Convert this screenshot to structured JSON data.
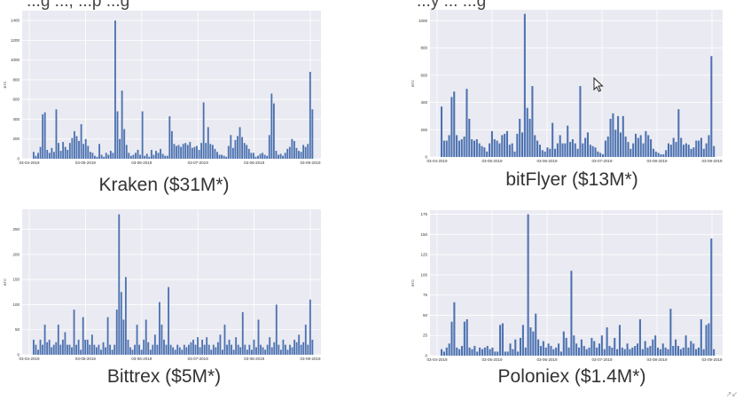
{
  "header": {
    "fragment_left": "...g   ...,   ...p   ...g",
    "fragment_right": "...y   ...   ...g"
  },
  "colors": {
    "bar": "#4c72b0",
    "plot_bg": "#eaeaf2",
    "grid": "#ffffff"
  },
  "chart_data": [
    {
      "type": "bar",
      "caption": "Kraken ($31M*)",
      "ylabel": "BTC",
      "ylim": [
        0,
        1500
      ],
      "yticks": [
        0,
        200,
        400,
        600,
        800,
        1000,
        1200,
        1400
      ],
      "xticks": [
        "03-04-2019",
        "03-05-2019",
        "03-06-2019",
        "03-07-2019",
        "03-08-2019",
        "03-09-2019"
      ],
      "values": [
        70,
        30,
        60,
        120,
        450,
        470,
        90,
        60,
        110,
        70,
        500,
        160,
        80,
        170,
        120,
        90,
        160,
        210,
        280,
        230,
        180,
        350,
        150,
        200,
        130,
        70,
        60,
        30,
        20,
        150,
        40,
        20,
        60,
        40,
        80,
        60,
        1400,
        480,
        200,
        690,
        300,
        140,
        60,
        30,
        40,
        60,
        90,
        40,
        480,
        30,
        50,
        20,
        90,
        40,
        80,
        60,
        100,
        50,
        30,
        30,
        430,
        280,
        150,
        130,
        140,
        120,
        150,
        160,
        140,
        170,
        110,
        120,
        130,
        90,
        160,
        570,
        160,
        320,
        150,
        140,
        100,
        70,
        40,
        40,
        30,
        20,
        130,
        240,
        110,
        190,
        230,
        320,
        220,
        160,
        140,
        100,
        60,
        60,
        20,
        30,
        50,
        60,
        40,
        30,
        240,
        660,
        560,
        80,
        40,
        50,
        30,
        60,
        100,
        120,
        200,
        180,
        110,
        80,
        70,
        140,
        120,
        150,
        880,
        500
      ]
    },
    {
      "type": "bar",
      "caption": "bitFlyer ($13M*)",
      "ylabel": "BTC",
      "ylim": [
        0,
        1080
      ],
      "yticks": [
        0,
        200,
        400,
        600,
        800,
        1000
      ],
      "xticks": [
        "03-04-2019",
        "03-05-2019",
        "03-06-2019",
        "03-07-2019",
        "03-08-2019",
        "03-09-2019"
      ],
      "values": [
        370,
        120,
        120,
        160,
        440,
        480,
        160,
        120,
        130,
        150,
        500,
        280,
        130,
        120,
        130,
        100,
        80,
        70,
        40,
        100,
        190,
        130,
        120,
        100,
        160,
        170,
        190,
        90,
        100,
        40,
        170,
        280,
        180,
        1050,
        360,
        280,
        520,
        160,
        120,
        90,
        50,
        40,
        70,
        60,
        250,
        60,
        100,
        160,
        100,
        100,
        230,
        110,
        130,
        100,
        60,
        520,
        100,
        140,
        180,
        90,
        80,
        70,
        40,
        30,
        20,
        120,
        150,
        280,
        320,
        200,
        300,
        180,
        300,
        150,
        110,
        60,
        100,
        170,
        140,
        160,
        100,
        190,
        160,
        130,
        60,
        40,
        30,
        20,
        20,
        50,
        100,
        90,
        140,
        110,
        350,
        140,
        90,
        100,
        90,
        60,
        70,
        120,
        120,
        140,
        60,
        100,
        160,
        740,
        80
      ]
    },
    {
      "type": "bar",
      "caption": "Bittrex ($5M*)",
      "ylabel": "BTC",
      "ylim": [
        0,
        290
      ],
      "yticks": [
        0,
        50,
        100,
        150,
        200,
        250
      ],
      "xticks": [
        "03-04-2019",
        "03-05-2019",
        "03-06-2019",
        "03-07-2019",
        "03-08-2019",
        "03-09-2019"
      ],
      "values": [
        30,
        20,
        10,
        30,
        20,
        60,
        25,
        30,
        15,
        20,
        25,
        60,
        20,
        30,
        45,
        20,
        20,
        15,
        90,
        20,
        30,
        10,
        75,
        30,
        30,
        20,
        40,
        20,
        15,
        20,
        10,
        25,
        15,
        75,
        20,
        10,
        20,
        90,
        280,
        125,
        70,
        155,
        30,
        15,
        10,
        20,
        60,
        20,
        10,
        30,
        70,
        25,
        10,
        20,
        40,
        20,
        105,
        60,
        30,
        20,
        135,
        20,
        15,
        10,
        20,
        15,
        10,
        20,
        15,
        20,
        25,
        30,
        20,
        35,
        15,
        30,
        20,
        35,
        20,
        10,
        20,
        15,
        25,
        40,
        10,
        60,
        20,
        30,
        20,
        10,
        35,
        20,
        15,
        85,
        20,
        10,
        20,
        10,
        30,
        15,
        70,
        20,
        15,
        10,
        20,
        35,
        15,
        25,
        100,
        20,
        10,
        30,
        20,
        10,
        20,
        15,
        30,
        25,
        40,
        20,
        25,
        60,
        20,
        110,
        30
      ]
    },
    {
      "type": "bar",
      "caption": "Poloniex ($1.4M*)",
      "ylabel": "BTC",
      "ylim": [
        0,
        180
      ],
      "yticks": [
        0,
        25,
        50,
        75,
        100,
        125,
        150,
        175
      ],
      "xticks": [
        "03-04-2019",
        "03-05-2019",
        "03-06-2019",
        "03-07-2019",
        "03-08-2019",
        "03-09-2019"
      ],
      "values": [
        8,
        5,
        10,
        15,
        42,
        66,
        10,
        8,
        12,
        42,
        45,
        10,
        8,
        12,
        5,
        10,
        8,
        10,
        12,
        8,
        10,
        5,
        5,
        38,
        40,
        5,
        5,
        15,
        8,
        20,
        5,
        22,
        38,
        10,
        175,
        35,
        30,
        52,
        20,
        12,
        18,
        10,
        15,
        12,
        8,
        10,
        15,
        5,
        30,
        22,
        10,
        105,
        25,
        15,
        10,
        20,
        12,
        8,
        10,
        22,
        18,
        10,
        15,
        25,
        8,
        35,
        12,
        10,
        22,
        8,
        38,
        10,
        8,
        15,
        8,
        10,
        12,
        15,
        45,
        8,
        18,
        10,
        12,
        20,
        25,
        10,
        8,
        15,
        10,
        8,
        58,
        12,
        20,
        12,
        8,
        10,
        25,
        10,
        18,
        15,
        8,
        10,
        45,
        8,
        38,
        40,
        145,
        8
      ]
    }
  ]
}
